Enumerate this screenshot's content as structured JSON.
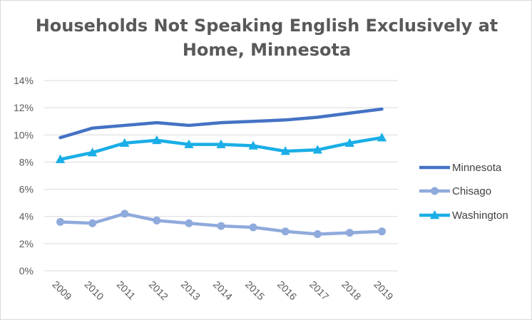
{
  "chart_data": {
    "type": "line",
    "title_line1": "Households Not Speaking English Exclusively at",
    "title_line2": "Home, Minnesota",
    "xlabel": "",
    "ylabel": "",
    "x": [
      "2009",
      "2010",
      "2011",
      "2012",
      "2013",
      "2014",
      "2015",
      "2016",
      "2017",
      "2018",
      "2019"
    ],
    "y_ticks": [
      "0%",
      "2%",
      "4%",
      "6%",
      "8%",
      "10%",
      "12%",
      "14%"
    ],
    "ylim": [
      0,
      14
    ],
    "grid": true,
    "legend_position": "right",
    "series": [
      {
        "name": "Minnesota",
        "marker": "none",
        "color": "#4472C4",
        "values": [
          9.8,
          10.5,
          10.7,
          10.9,
          10.7,
          10.9,
          11.0,
          11.1,
          11.3,
          11.6,
          11.9
        ]
      },
      {
        "name": "Chisago",
        "marker": "circle",
        "color": "#8FAADC",
        "values": [
          3.6,
          3.5,
          4.2,
          3.7,
          3.5,
          3.3,
          3.2,
          2.9,
          2.7,
          2.8,
          2.9
        ]
      },
      {
        "name": "Washington",
        "marker": "triangle",
        "color": "#1AAEE6",
        "values": [
          8.2,
          8.7,
          9.4,
          9.6,
          9.3,
          9.3,
          9.2,
          8.8,
          8.9,
          9.4,
          9.8
        ]
      }
    ]
  }
}
